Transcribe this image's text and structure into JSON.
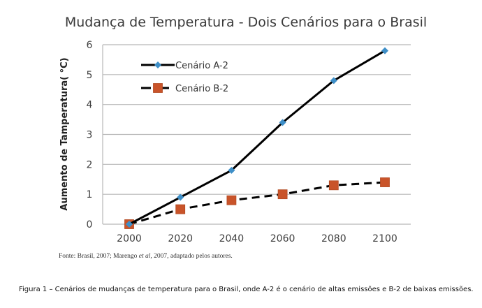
{
  "chart_data": {
    "type": "line",
    "title": "Mudança de Temperatura  - Dois Cenários para o Brasil",
    "xlabel": "",
    "ylabel": "Aumento de Tamperatura( °C)",
    "categories": [
      "2000",
      "2020",
      "2040",
      "2060",
      "2080",
      "2100"
    ],
    "x": [
      2000,
      2020,
      2040,
      2060,
      2080,
      2100
    ],
    "ylim": [
      0,
      6
    ],
    "yticks": [
      "0",
      "1",
      "2",
      "3",
      "4",
      "5",
      "6"
    ],
    "grid": true,
    "legend_position": "top-left-inside",
    "series": [
      {
        "name": "Cenário A-2",
        "values": [
          0,
          0.9,
          1.8,
          3.4,
          4.8,
          5.8
        ],
        "line_style": "solid",
        "marker": "diamond",
        "marker_color": "#3e8fc8",
        "line_color": "#000000"
      },
      {
        "name": "Cenário B-2",
        "values": [
          0,
          0.5,
          0.8,
          1.0,
          1.3,
          1.4
        ],
        "line_style": "dashed",
        "marker": "square",
        "marker_color": "#c9542a",
        "line_color": "#000000"
      }
    ]
  },
  "source": {
    "prefix": "Fonte: Brasil, 2007; Marengo ",
    "italic": "et al",
    "suffix": ", 2007, adaptado pelos autores."
  },
  "caption": "Figura 1 – Cenários de mudanças de temperatura para o Brasil, onde A-2 é o cenário de altas emissões e B-2 de baixas emissões."
}
